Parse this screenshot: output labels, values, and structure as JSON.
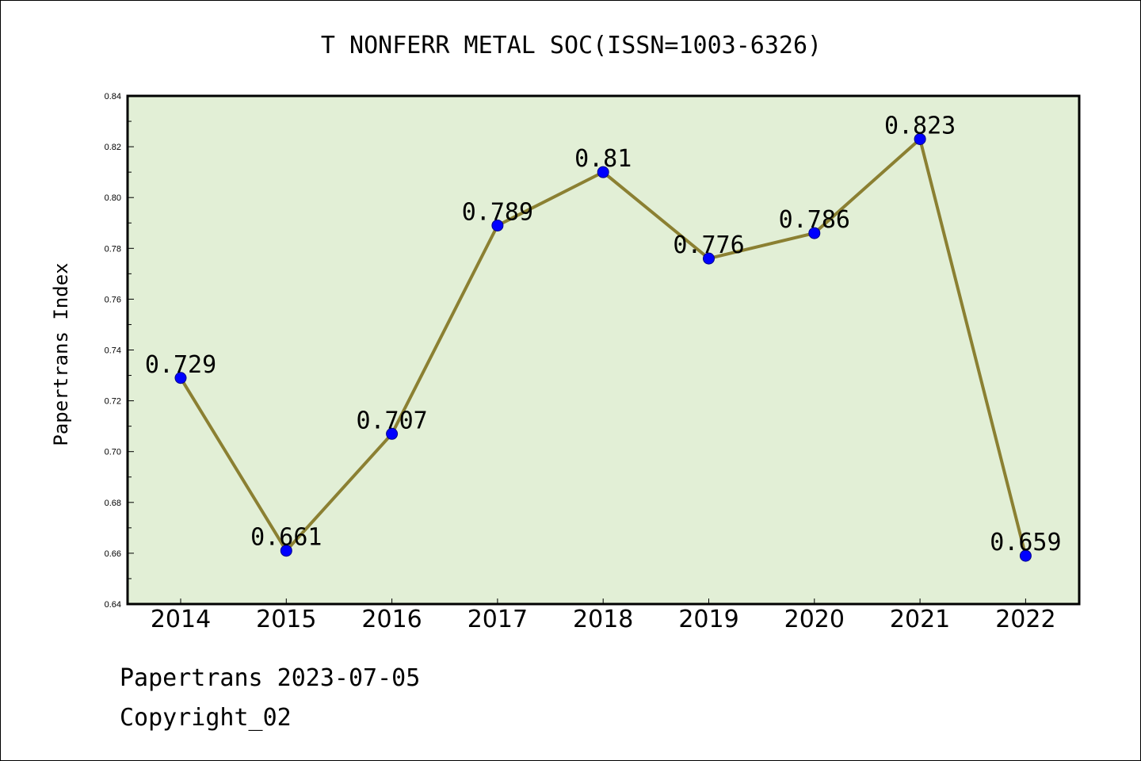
{
  "chart_data": {
    "type": "line",
    "title": "T NONFERR METAL SOC(ISSN=1003-6326)",
    "xlabel": "",
    "ylabel": "Papertrans Index",
    "categories": [
      "2014",
      "2015",
      "2016",
      "2017",
      "2018",
      "2019",
      "2020",
      "2021",
      "2022"
    ],
    "series": [
      {
        "values": [
          0.729,
          0.661,
          0.707,
          0.789,
          0.81,
          0.776,
          0.786,
          0.823,
          0.659
        ]
      }
    ],
    "data_labels": [
      "0.729",
      "0.661",
      "0.707",
      "0.789",
      "0.81",
      "0.776",
      "0.786",
      "0.823",
      "0.659"
    ],
    "ylim": [
      0.64,
      0.84
    ],
    "yticks": [
      "0.64",
      "0.66",
      "0.68",
      "0.70",
      "0.72",
      "0.74",
      "0.76",
      "0.78",
      "0.80",
      "0.82",
      "0.84"
    ],
    "grid": false,
    "legend": "none",
    "colors": {
      "plot_background": "#e2efd6",
      "line": "#8b8032",
      "marker_fill": "#0000ff",
      "marker_stroke": "#00008b"
    }
  },
  "footer": {
    "line1": "Papertrans 2023-07-05",
    "line2": "Copyright_02"
  }
}
